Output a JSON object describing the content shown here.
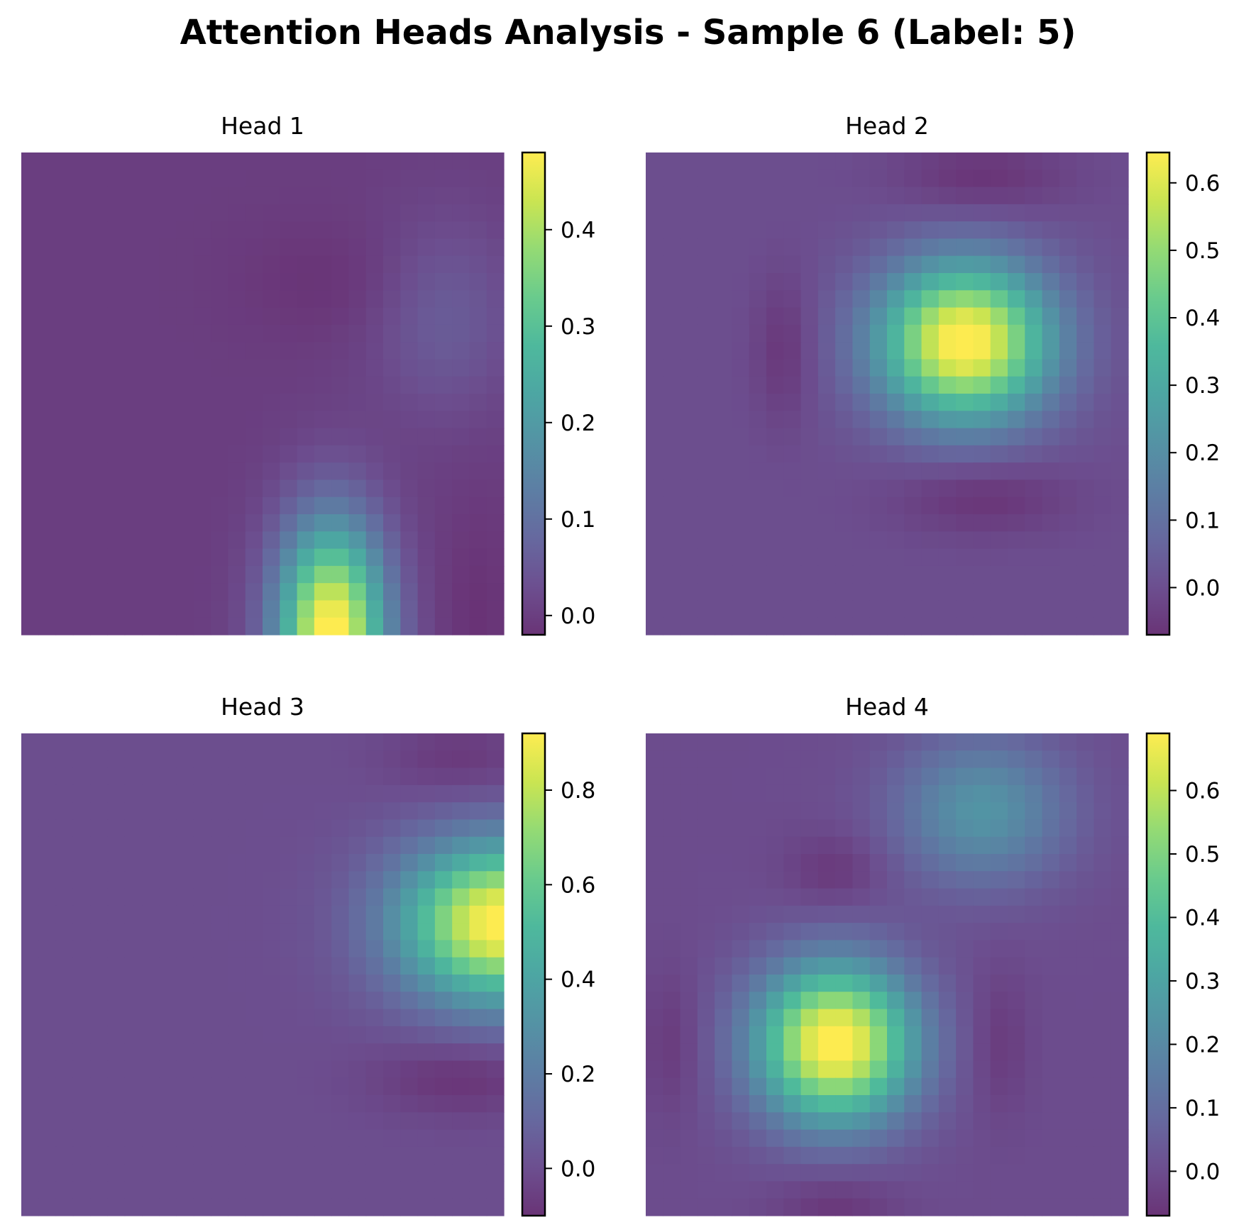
{
  "title": "Attention Heads Analysis - Sample 6 (Label: 5)",
  "chart_data": {
    "type": "heatmap",
    "colormap": "viridis",
    "grid_size": 28,
    "axes_visible": false,
    "heads": [
      {
        "name": "Head 1",
        "colorbar": {
          "vmin": -0.02,
          "vmax": 0.48,
          "ticks": [
            0.0,
            0.1,
            0.2,
            0.3,
            0.4
          ],
          "tick_labels": [
            "0.0",
            "0.1",
            "0.2",
            "0.3",
            "0.4"
          ]
        },
        "blobs": [
          {
            "row": 27.5,
            "col": 17.5,
            "amp": 0.5,
            "sigma_row": 4.5,
            "sigma_col": 2.2
          },
          {
            "row": 9,
            "col": 24,
            "amp": 0.06,
            "sigma_row": 4,
            "sigma_col": 3
          },
          {
            "row": 7,
            "col": 18,
            "amp": -0.02,
            "sigma_row": 2.5,
            "sigma_col": 4
          },
          {
            "row": 27,
            "col": 26,
            "amp": -0.02,
            "sigma_row": 5,
            "sigma_col": 1.5
          }
        ]
      },
      {
        "name": "Head 2",
        "colorbar": {
          "vmin": -0.07,
          "vmax": 0.645,
          "ticks": [
            0.0,
            0.1,
            0.2,
            0.3,
            0.4,
            0.5,
            0.6
          ],
          "tick_labels": [
            "0.0",
            "0.1",
            "0.2",
            "0.3",
            "0.4",
            "0.5",
            "0.6"
          ]
        },
        "blobs": [
          {
            "row": 10.5,
            "col": 18,
            "amp": 0.67,
            "sigma_row": 3.2,
            "sigma_col": 3.5
          },
          {
            "row": 1,
            "col": 19,
            "amp": -0.07,
            "sigma_row": 1.5,
            "sigma_col": 3.5
          },
          {
            "row": 19.5,
            "col": 19,
            "amp": -0.07,
            "sigma_row": 1.5,
            "sigma_col": 3.5
          },
          {
            "row": 11,
            "col": 7.5,
            "amp": -0.06,
            "sigma_row": 3,
            "sigma_col": 1.2
          }
        ]
      },
      {
        "name": "Head 3",
        "colorbar": {
          "vmin": -0.1,
          "vmax": 0.92,
          "ticks": [
            0.0,
            0.2,
            0.4,
            0.6,
            0.8
          ],
          "tick_labels": [
            "0.0",
            "0.2",
            "0.4",
            "0.6",
            "0.8"
          ]
        },
        "blobs": [
          {
            "row": 10.5,
            "col": 27.5,
            "amp": 0.95,
            "sigma_row": 3.2,
            "sigma_col": 4.2
          },
          {
            "row": 1,
            "col": 25,
            "amp": -0.08,
            "sigma_row": 1.5,
            "sigma_col": 3
          },
          {
            "row": 19.5,
            "col": 25,
            "amp": -0.1,
            "sigma_row": 1.5,
            "sigma_col": 3.5
          }
        ]
      },
      {
        "name": "Head 4",
        "colorbar": {
          "vmin": -0.07,
          "vmax": 0.69,
          "ticks": [
            0.0,
            0.1,
            0.2,
            0.3,
            0.4,
            0.5,
            0.6
          ],
          "tick_labels": [
            "0.0",
            "0.1",
            "0.2",
            "0.3",
            "0.4",
            "0.5",
            "0.6"
          ]
        },
        "blobs": [
          {
            "row": 17.5,
            "col": 10.5,
            "amp": 0.72,
            "sigma_row": 3.2,
            "sigma_col": 3.2
          },
          {
            "row": 4,
            "col": 19,
            "amp": 0.24,
            "sigma_row": 3,
            "sigma_col": 3.5
          },
          {
            "row": 7.5,
            "col": 10.5,
            "amp": -0.06,
            "sigma_row": 1.5,
            "sigma_col": 2
          },
          {
            "row": 27,
            "col": 10.5,
            "amp": -0.06,
            "sigma_row": 1.5,
            "sigma_col": 2.5
          },
          {
            "row": 17.5,
            "col": 1,
            "amp": -0.05,
            "sigma_row": 3,
            "sigma_col": 1.2
          },
          {
            "row": 17.5,
            "col": 20,
            "amp": -0.05,
            "sigma_row": 3,
            "sigma_col": 1.2
          }
        ]
      }
    ]
  }
}
